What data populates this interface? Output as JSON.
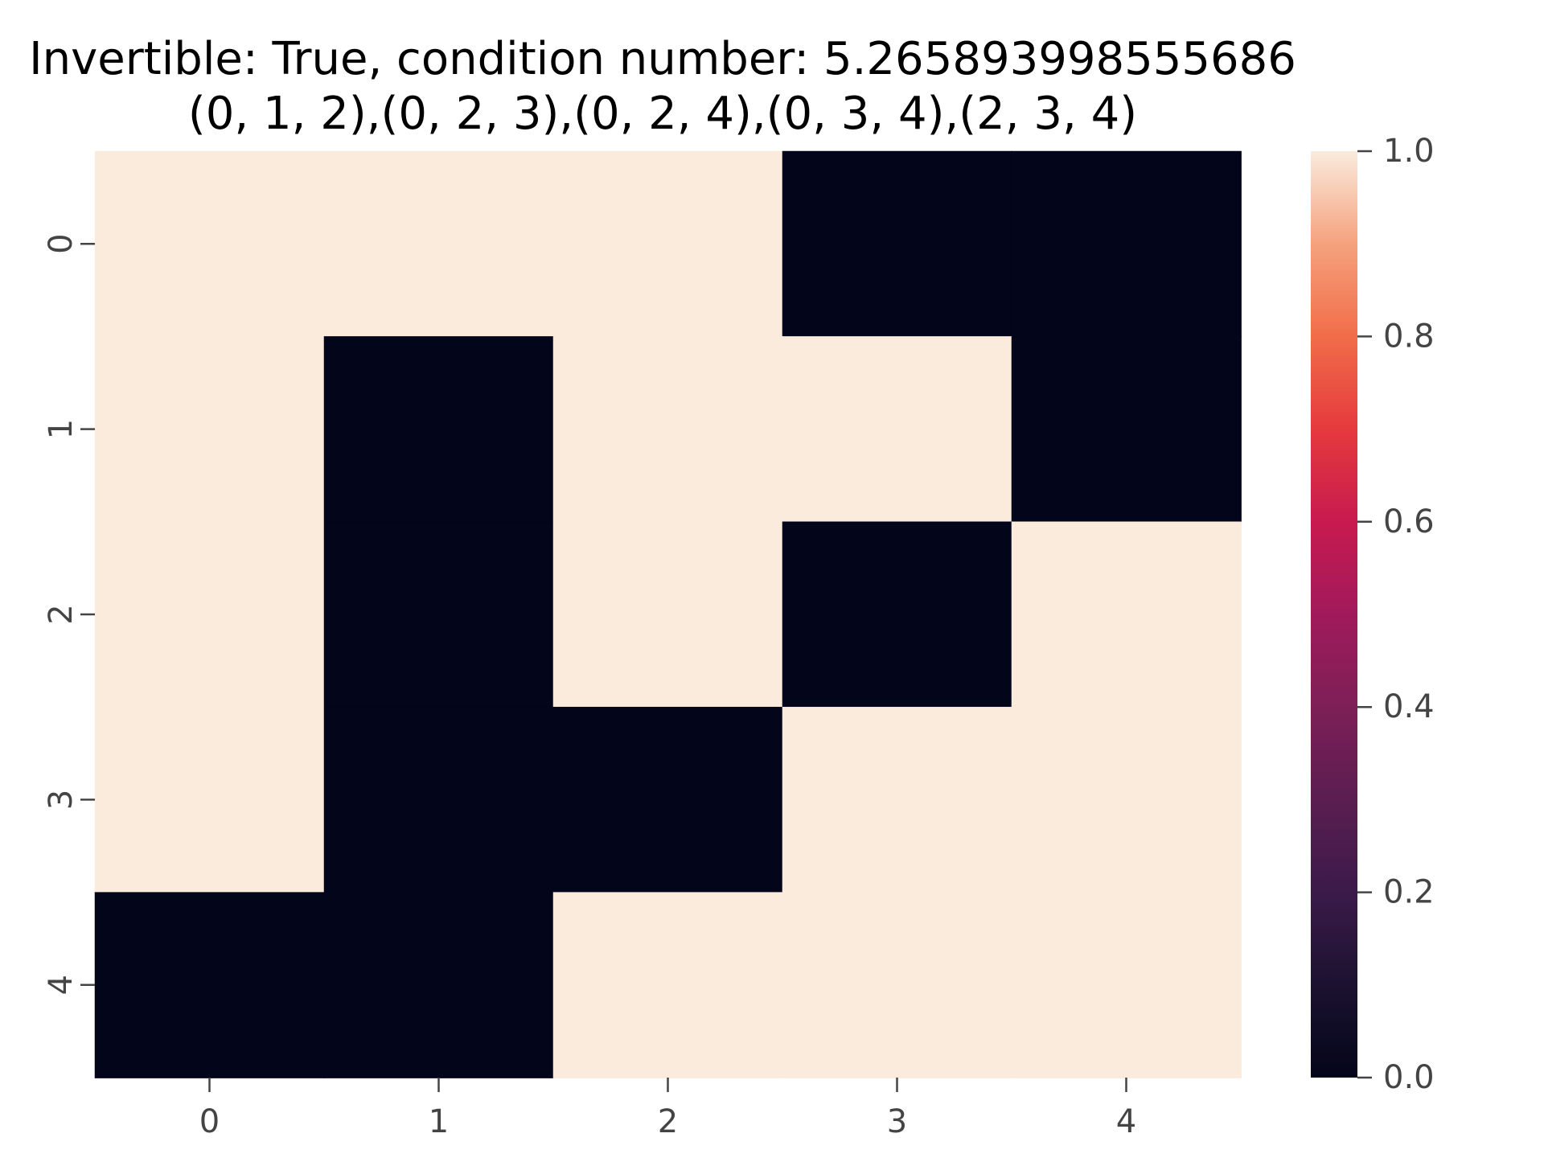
{
  "chart_data": {
    "type": "heatmap",
    "title": "Invertible: True, condition number: 5.265893998555686",
    "subtitle": "(0, 1, 2),(0, 2, 3),(0, 2, 4),(0, 3, 4),(2, 3, 4)",
    "x_categories": [
      "0",
      "1",
      "2",
      "3",
      "4"
    ],
    "y_categories": [
      "0",
      "1",
      "2",
      "3",
      "4"
    ],
    "values": [
      [
        1,
        1,
        1,
        0,
        0
      ],
      [
        1,
        0,
        1,
        1,
        0
      ],
      [
        1,
        0,
        1,
        0,
        1
      ],
      [
        1,
        0,
        0,
        1,
        1
      ],
      [
        0,
        0,
        1,
        1,
        1
      ]
    ],
    "vmin": 0,
    "vmax": 1,
    "colorbar_ticks": [
      "0.0",
      "0.2",
      "0.4",
      "0.6",
      "0.8",
      "1.0"
    ],
    "colormap": "rocket",
    "colorbar_position": "right",
    "grid": false
  }
}
